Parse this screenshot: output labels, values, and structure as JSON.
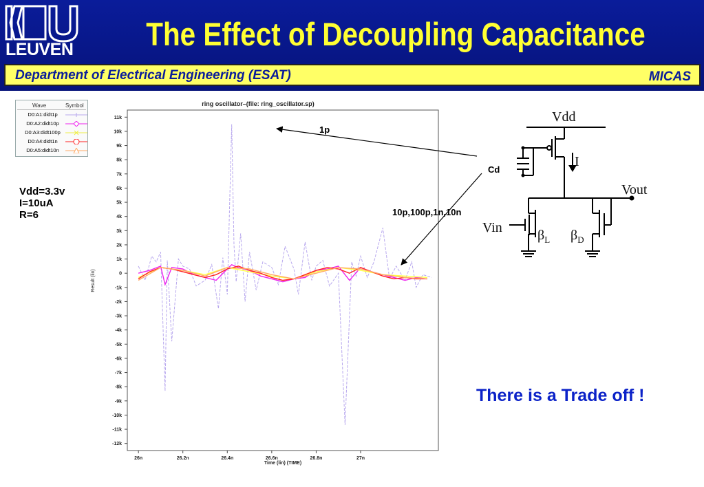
{
  "header": {
    "logo_text": "LEUVEN",
    "title": "The Effect of Decoupling Capacitance",
    "department": "Department of Electrical Engineering (ESAT)",
    "group": "MICAS"
  },
  "legend": {
    "headers": [
      "Wave",
      "Symbol"
    ],
    "items": [
      {
        "label": "D0:A1:didt1p",
        "color": "#b8a8ee"
      },
      {
        "label": "D0:A2:didt10p",
        "color": "#ee22ee"
      },
      {
        "label": "D0:A3:didt100p",
        "color": "#ffff44"
      },
      {
        "label": "D0:A4:didt1n",
        "color": "#ff2222"
      },
      {
        "label": "D0:A5:didt10n",
        "color": "#ffaa66"
      }
    ]
  },
  "params": [
    "Vdd=3.3v",
    "I=10uA",
    "R=6"
  ],
  "chart_data": {
    "type": "line",
    "title": "ring oscillator–(file: ring_oscillator.sp)",
    "xlabel": "Time (lin) (TIME)",
    "ylabel": "Result (lin)",
    "xlim": [
      25.95,
      27.35
    ],
    "ylim": [
      -12.5,
      11.5
    ],
    "x_ticks": [
      26,
      26.2,
      26.4,
      26.6,
      26.8,
      27
    ],
    "x_tick_labels": [
      "26n",
      "26.2n",
      "26.4n",
      "26.6n",
      "26.8n",
      "27n"
    ],
    "y_ticks": [
      11,
      10,
      9,
      8,
      7,
      6,
      5,
      4,
      3,
      2,
      1,
      0,
      -1,
      -2,
      -3,
      -4,
      -5,
      -6,
      -7,
      -8,
      -9,
      -10,
      -11,
      -12
    ],
    "y_tick_labels": [
      "11k",
      "10k",
      "9k",
      "8k",
      "7k",
      "6k",
      "5k",
      "4k",
      "3k",
      "2k",
      "1k",
      "0",
      "-1k",
      "-2k",
      "-3k",
      "-4k",
      "-5k",
      "-6k",
      "-7k",
      "-8k",
      "-9k",
      "-10k",
      "-11k",
      "-12k"
    ],
    "grid": false,
    "series": [
      {
        "name": "D0:A1:didt1p",
        "color": "#b8a8ee",
        "x": [
          26.0,
          26.03,
          26.06,
          26.08,
          26.1,
          26.12,
          26.13,
          26.15,
          26.18,
          26.2,
          26.23,
          26.26,
          26.3,
          26.33,
          26.36,
          26.38,
          26.4,
          26.42,
          26.43,
          26.44,
          26.46,
          26.48,
          26.5,
          26.53,
          26.56,
          26.6,
          26.63,
          26.66,
          26.7,
          26.72,
          26.75,
          26.78,
          26.8,
          26.83,
          26.86,
          26.9,
          26.93,
          26.96,
          26.98,
          27.0,
          27.03,
          27.06,
          27.1,
          27.13,
          27.16,
          27.2,
          27.23,
          27.25,
          27.28,
          27.32
        ],
        "values": [
          0.5,
          -0.5,
          1.2,
          0.8,
          1.5,
          -8.3,
          0.9,
          -4.8,
          1.0,
          0.5,
          0.3,
          -0.9,
          -0.5,
          0.6,
          -2.5,
          1.1,
          -1.5,
          10.5,
          2.0,
          -0.6,
          2.8,
          -2.0,
          1.5,
          -1.2,
          0.8,
          0.4,
          -0.8,
          1.9,
          0.3,
          -1.5,
          2.2,
          -0.5,
          0.5,
          0.9,
          -0.9,
          0.0,
          -10.7,
          0.8,
          -0.2,
          1.2,
          -0.3,
          0.8,
          3.2,
          -0.4,
          0.5,
          -0.5,
          0.8,
          -1.0,
          -0.1,
          -0.3
        ]
      },
      {
        "name": "D0:A2:didt10p",
        "color": "#ee22ee",
        "x": [
          26.0,
          26.05,
          26.1,
          26.12,
          26.15,
          26.2,
          26.25,
          26.3,
          26.35,
          26.4,
          26.42,
          26.45,
          26.5,
          26.55,
          26.6,
          26.65,
          26.7,
          26.75,
          26.8,
          26.85,
          26.9,
          26.95,
          27.0,
          27.05,
          27.1,
          27.15,
          27.2,
          27.25,
          27.3
        ],
        "values": [
          0.0,
          0.2,
          0.5,
          -0.8,
          0.4,
          0.3,
          -0.1,
          -0.3,
          -0.5,
          0.3,
          0.6,
          0.4,
          0.2,
          -0.2,
          -0.4,
          -0.6,
          -0.4,
          -0.3,
          0.2,
          0.3,
          0.5,
          -0.5,
          0.4,
          0.1,
          -0.1,
          -0.3,
          -0.5,
          -0.3,
          -0.4
        ]
      },
      {
        "name": "D0:A3:didt100p",
        "color": "#ffff44",
        "x": [
          26.0,
          26.1,
          26.2,
          26.3,
          26.4,
          26.5,
          26.6,
          26.7,
          26.8,
          26.9,
          27.0,
          27.1,
          27.2,
          27.3
        ],
        "values": [
          -0.3,
          0.4,
          0.2,
          -0.1,
          0.4,
          0.1,
          -0.2,
          -0.4,
          0.1,
          0.4,
          0.2,
          -0.1,
          -0.2,
          -0.3
        ]
      },
      {
        "name": "D0:A4:didt1n",
        "color": "#ff2222",
        "x": [
          26.0,
          26.05,
          26.1,
          26.15,
          26.2,
          26.25,
          26.3,
          26.35,
          26.4,
          26.45,
          26.5,
          26.55,
          26.6,
          26.65,
          26.7,
          26.75,
          26.8,
          26.85,
          26.9,
          26.95,
          27.0,
          27.05,
          27.1,
          27.15,
          27.2,
          27.25,
          27.3
        ],
        "values": [
          -0.4,
          0.1,
          0.4,
          0.3,
          0.1,
          -0.1,
          -0.3,
          -0.1,
          0.3,
          0.5,
          0.2,
          0.0,
          -0.3,
          -0.5,
          -0.4,
          -0.1,
          0.2,
          0.4,
          0.3,
          0.0,
          0.4,
          0.1,
          -0.2,
          -0.4,
          -0.3,
          -0.4,
          -0.4
        ]
      },
      {
        "name": "D0:A5:didt10n",
        "color": "#ffaa66",
        "x": [
          26.0,
          26.1,
          26.2,
          26.3,
          26.4,
          26.5,
          26.6,
          26.7,
          26.8,
          26.9,
          27.0,
          27.1,
          27.2,
          27.3
        ],
        "values": [
          -0.5,
          0.4,
          0.2,
          -0.2,
          0.4,
          0.3,
          -0.1,
          -0.4,
          0.0,
          0.4,
          0.3,
          -0.1,
          -0.3,
          -0.4
        ]
      }
    ]
  },
  "annotations": {
    "label_1p": "1p",
    "label_cd": "Cd",
    "label_multi": "10p,100p,1n,10n"
  },
  "circuit": {
    "vdd": "Vdd",
    "current": "I",
    "vout": "Vout",
    "vin": "Vin",
    "beta_l": "β",
    "beta_l_sub": "L",
    "beta_d": "β",
    "beta_d_sub": "D"
  },
  "conclusion": "There is a Trade off !"
}
